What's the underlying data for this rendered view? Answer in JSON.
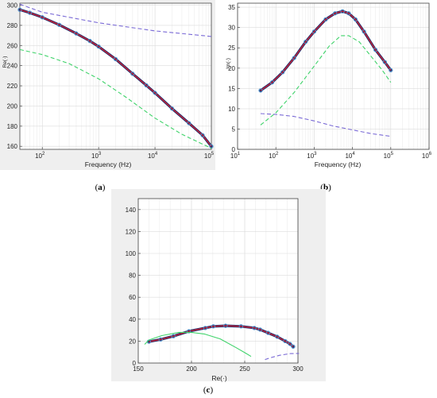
{
  "chart_data": [
    {
      "id": "a",
      "panel_label_open": "(",
      "panel_label_letter": "a",
      "panel_label_close": ")",
      "type": "line",
      "xlabel": "Frequency (Hz)",
      "ylabel": "Re(·)",
      "xscale": "log",
      "xlim": [
        40,
        100000
      ],
      "ylim": [
        157,
        302
      ],
      "xticks": [
        100,
        1000,
        10000,
        100000
      ],
      "xtick_labels": [
        {
          "base": "10",
          "exp": "2"
        },
        {
          "base": "10",
          "exp": "3"
        },
        {
          "base": "10",
          "exp": "4"
        },
        {
          "base": "10",
          "exp": "5"
        }
      ],
      "yticks": [
        160,
        180,
        200,
        220,
        240,
        260,
        280,
        300
      ],
      "ytick_labels": [
        "160",
        "180",
        "200",
        "220",
        "240",
        "260",
        "280",
        "300"
      ],
      "grid": true,
      "series": [
        {
          "style": "fit",
          "color": "#cc2233",
          "x": [
            40,
            60,
            100,
            200,
            400,
            700,
            1000,
            2000,
            4000,
            7000,
            10000,
            20000,
            40000,
            70000,
            100000
          ],
          "y": [
            295.5,
            292.5,
            288,
            280.5,
            272,
            264.5,
            259,
            246.5,
            232,
            220.5,
            213,
            197.5,
            183,
            171,
            160
          ]
        },
        {
          "style": "measured",
          "color": "#4f94cf",
          "x": [
            40,
            60,
            100,
            200,
            400,
            700,
            1000,
            2000,
            4000,
            7000,
            10000,
            20000,
            40000,
            70000,
            100000
          ],
          "y": [
            295.5,
            292.5,
            288,
            280.5,
            272,
            264.5,
            259,
            246.5,
            232,
            220.5,
            213,
            197.5,
            183,
            171,
            160
          ]
        },
        {
          "style": "dash",
          "color": "#7a6ad6",
          "x": [
            40,
            100,
            1000,
            10000,
            100000
          ],
          "y": [
            301,
            293,
            282.5,
            274.5,
            269
          ]
        },
        {
          "style": "dash",
          "color": "#3fd36a",
          "x": [
            40,
            100,
            300,
            1000,
            3000,
            10000,
            30000,
            100000
          ],
          "y": [
            256,
            251,
            242,
            227,
            209,
            188,
            172,
            158
          ]
        }
      ]
    },
    {
      "id": "b",
      "panel_label_open": "(",
      "panel_label_letter": "b",
      "panel_label_close": ")",
      "type": "line",
      "xlabel": "Frequency (Hz)",
      "ylabel": "Im(·)",
      "xscale": "log",
      "xlim": [
        10,
        1000000
      ],
      "ylim": [
        0,
        36
      ],
      "xticks": [
        10,
        100,
        1000,
        10000,
        100000,
        1000000
      ],
      "xtick_labels": [
        {
          "base": "10",
          "exp": "1"
        },
        {
          "base": "10",
          "exp": "2"
        },
        {
          "base": "10",
          "exp": "3"
        },
        {
          "base": "10",
          "exp": "4"
        },
        {
          "base": "10",
          "exp": "5"
        },
        {
          "base": "10",
          "exp": "6"
        }
      ],
      "yticks": [
        0,
        5,
        10,
        15,
        20,
        25,
        30,
        35
      ],
      "ytick_labels": [
        "0",
        "5",
        "10",
        "15",
        "20",
        "25",
        "30",
        "35"
      ],
      "grid": true,
      "series": [
        {
          "style": "fit",
          "color": "#cc2233",
          "x": [
            40,
            80,
            150,
            300,
            600,
            1000,
            2000,
            3500,
            5500,
            8000,
            12000,
            20000,
            40000,
            70000,
            100000
          ],
          "y": [
            14.5,
            16.5,
            19,
            22.5,
            26.5,
            29,
            32,
            33.5,
            34,
            33.5,
            32,
            29,
            24.5,
            21.5,
            19.5
          ]
        },
        {
          "style": "measured",
          "color": "#4f94cf",
          "x": [
            40,
            80,
            150,
            300,
            600,
            1000,
            2000,
            3500,
            5500,
            8000,
            12000,
            20000,
            40000,
            70000,
            100000
          ],
          "y": [
            14.5,
            16.5,
            19,
            22.5,
            26.5,
            29,
            32,
            33.5,
            34,
            33.5,
            32,
            29,
            24.5,
            21.5,
            19.5
          ]
        },
        {
          "style": "dash",
          "color": "#3fd36a",
          "x": [
            40,
            100,
            300,
            1000,
            2500,
            5000,
            8000,
            15000,
            30000,
            60000,
            100000
          ],
          "y": [
            6,
            9,
            14,
            20.5,
            25.5,
            28,
            28,
            26.5,
            23,
            19.5,
            16.5
          ]
        },
        {
          "style": "dash",
          "color": "#7a6ad6",
          "x": [
            40,
            100,
            300,
            1000,
            3000,
            10000,
            30000,
            100000
          ],
          "y": [
            8.8,
            8.6,
            8.1,
            7,
            5.8,
            4.8,
            3.9,
            3.2
          ]
        }
      ]
    },
    {
      "id": "c",
      "panel_label_open": "(",
      "panel_label_letter": "c",
      "panel_label_close": ")",
      "type": "line",
      "xlabel": "Re(·)",
      "ylabel": "",
      "xscale": "linear",
      "xlim": [
        150,
        300
      ],
      "ylim": [
        0,
        150
      ],
      "xticks": [
        150,
        200,
        250,
        300
      ],
      "xtick_labels": [
        "150",
        "200",
        "250",
        "300"
      ],
      "yticks": [
        0,
        20,
        40,
        60,
        80,
        100,
        120,
        140
      ],
      "ytick_labels": [
        "0",
        "20",
        "40",
        "60",
        "80",
        "100",
        "120",
        "140"
      ],
      "grid": true,
      "series": [
        {
          "style": "fit",
          "color": "#cc2233",
          "x": [
            160,
            171,
            183,
            197.5,
            213,
            220.5,
            232,
            246.5,
            259,
            264.5,
            272,
            280.5,
            288,
            292.5,
            295.5
          ],
          "y": [
            19.5,
            21.5,
            24.5,
            29,
            32,
            33.5,
            34,
            33.5,
            32,
            30.5,
            27.5,
            24,
            20,
            17.5,
            15
          ]
        },
        {
          "style": "measured",
          "color": "#4f94cf",
          "x": [
            160,
            171,
            183,
            197.5,
            213,
            220.5,
            232,
            246.5,
            259,
            264.5,
            272,
            280.5,
            288,
            292.5,
            295.5
          ],
          "y": [
            19.5,
            21.5,
            24.5,
            29,
            32,
            33.5,
            34,
            33.5,
            32,
            30.5,
            27.5,
            24,
            20,
            17.5,
            15
          ]
        },
        {
          "style": "solid",
          "color": "#3fd36a",
          "x": [
            156,
            160,
            172,
            188,
            200,
            212,
            227,
            242,
            251,
            256
          ],
          "y": [
            17,
            21,
            25,
            28,
            28,
            26.5,
            22,
            14,
            9,
            6
          ]
        },
        {
          "style": "dash",
          "color": "#7a6ad6",
          "x": [
            269,
            274,
            282.5,
            293,
            301
          ],
          "y": [
            3.2,
            4.8,
            7,
            8.6,
            8.8
          ]
        }
      ]
    }
  ]
}
